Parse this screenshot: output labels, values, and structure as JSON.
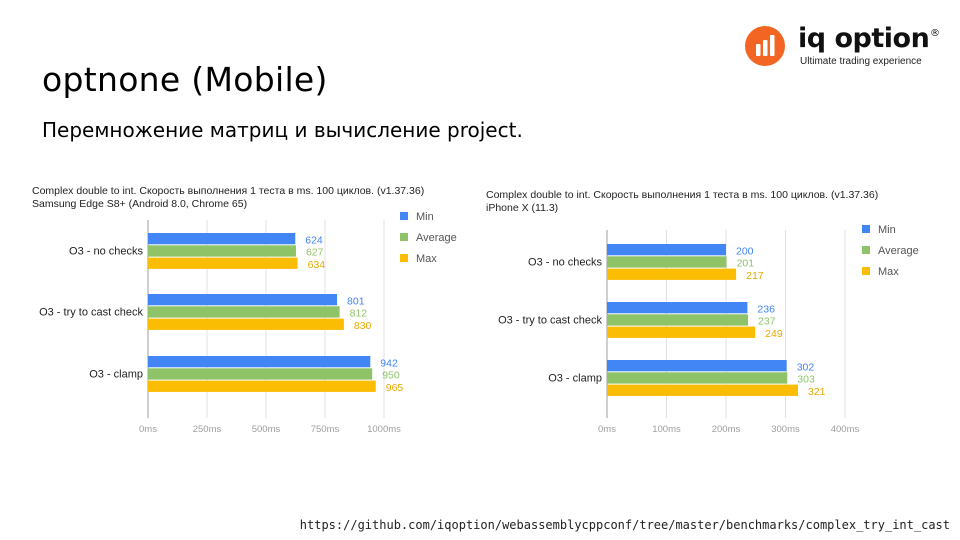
{
  "slide": {
    "title": "optnone (Mobile)",
    "subtitle": "Перемножение матриц и вычисление project.",
    "footer_url": "https://github.com/iqoption/webassemblycppconf/tree/master/benchmarks/complex_try_int_cast"
  },
  "logo": {
    "name": "iq option",
    "registered": "®",
    "tagline": "Ultimate trading experience",
    "color": "#f26522"
  },
  "colors": {
    "min": "#4285f4",
    "average": "#8fc368",
    "max": "#fbbc04",
    "grid": "#e0e0e0",
    "axis": "#9e9e9e"
  },
  "chart_data": [
    {
      "type": "bar",
      "orientation": "horizontal",
      "title": "Complex double to int. Скорость выполнения 1 теста в ms. 100 циклов. (v1.37.36)",
      "subtitle": "Samsung Edge S8+ (Android 8.0, Chrome 65)",
      "categories": [
        "O3 - no checks",
        "O3 - try to cast check",
        "O3 - clamp"
      ],
      "series": [
        {
          "name": "Min",
          "values": [
            624,
            801,
            942
          ]
        },
        {
          "name": "Average",
          "values": [
            627,
            812,
            950
          ]
        },
        {
          "name": "Max",
          "values": [
            634,
            830,
            965
          ]
        }
      ],
      "xlim": [
        0,
        1000
      ],
      "ticks": [
        0,
        250,
        500,
        750,
        1000
      ],
      "tick_labels": [
        "0ms",
        "250ms",
        "500ms",
        "750ms",
        "1000ms"
      ],
      "legend": "right"
    },
    {
      "type": "bar",
      "orientation": "horizontal",
      "title": "Complex double to int. Скорость выполнения 1 теста в ms. 100 циклов. (v1.37.36)",
      "subtitle": "iPhone X (11.3)",
      "categories": [
        "O3 - no checks",
        "O3 - try to cast check",
        "O3 - clamp"
      ],
      "series": [
        {
          "name": "Min",
          "values": [
            200,
            236,
            302
          ]
        },
        {
          "name": "Average",
          "values": [
            201,
            237,
            303
          ]
        },
        {
          "name": "Max",
          "values": [
            217,
            249,
            321
          ]
        }
      ],
      "xlim": [
        0,
        400
      ],
      "ticks": [
        0,
        100,
        200,
        300,
        400
      ],
      "tick_labels": [
        "0ms",
        "100ms",
        "200ms",
        "300ms",
        "400ms"
      ],
      "legend": "right"
    }
  ]
}
